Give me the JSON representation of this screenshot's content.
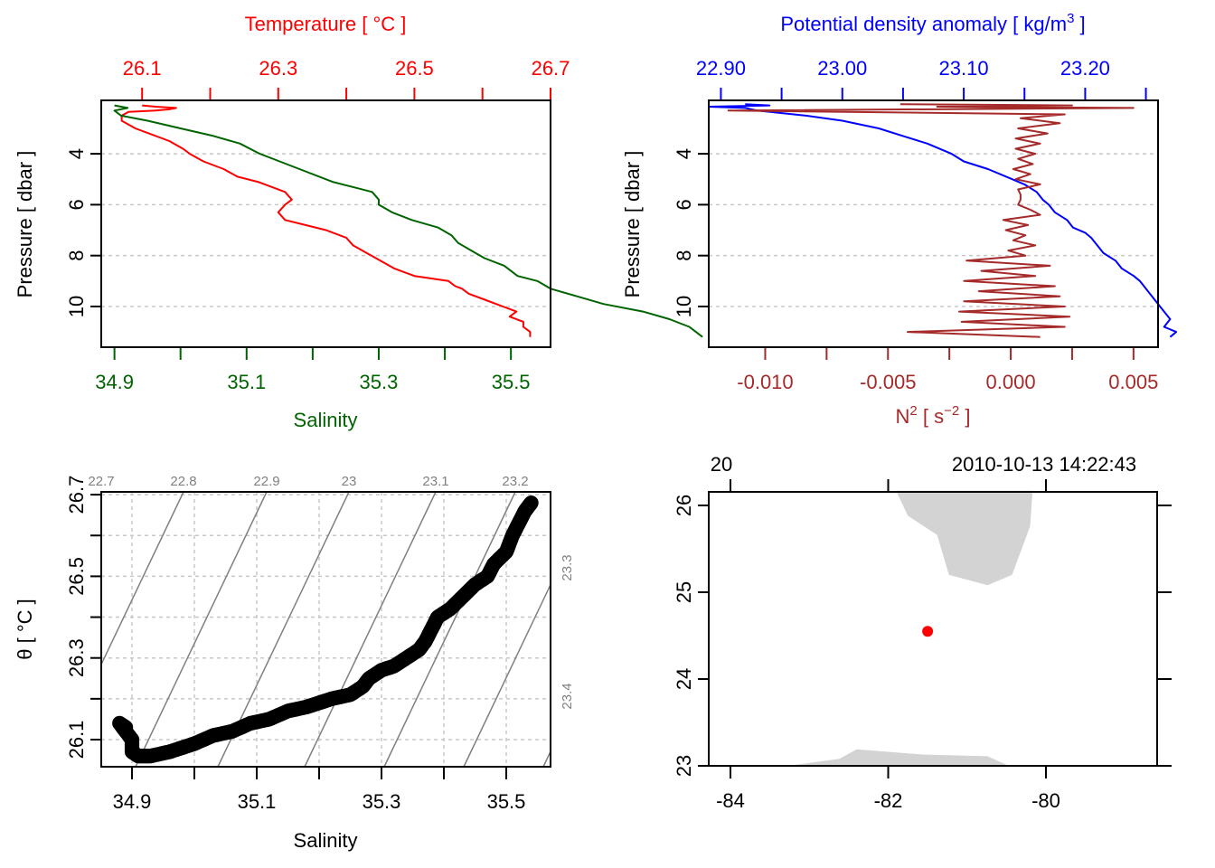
{
  "chart_data": [
    {
      "id": "profile-ts",
      "type": "line",
      "title": "",
      "top_axis": {
        "label": "Temperature [ °C ]",
        "color": "#ff0000",
        "ticks": [
          "26.1",
          "26.3",
          "26.5",
          "26.7"
        ],
        "range": [
          26.04,
          26.7
        ]
      },
      "bottom_axis": {
        "label": "Salinity",
        "color": "#006400",
        "ticks": [
          "34.9",
          "35.1",
          "35.3",
          "35.5"
        ],
        "range": [
          34.88,
          35.56
        ]
      },
      "ylabel": "Pressure [ dbar ]",
      "y_ticks": [
        "4",
        "6",
        "8",
        "10"
      ],
      "ylim": [
        11.6,
        1.9
      ],
      "grid": "horizontal dotted",
      "series": [
        {
          "name": "Temperature",
          "color": "#ff0000",
          "axis": "top",
          "pressure": [
            2.1,
            2.15,
            2.2,
            2.25,
            2.3,
            2.35,
            2.5,
            2.7,
            3.0,
            3.2,
            3.5,
            3.8,
            4.0,
            4.3,
            4.6,
            4.9,
            5.1,
            5.3,
            5.5,
            5.8,
            6.0,
            6.3,
            6.6,
            6.8,
            7.0,
            7.3,
            7.6,
            7.9,
            8.2,
            8.5,
            8.8,
            9.0,
            9.2,
            9.3,
            9.5,
            9.7,
            9.9,
            10.0,
            10.2,
            10.4,
            10.6,
            10.8,
            11.0,
            11.2
          ],
          "values": [
            26.1,
            26.12,
            26.15,
            26.14,
            26.12,
            26.08,
            26.07,
            26.07,
            26.09,
            26.11,
            26.14,
            26.16,
            26.17,
            26.19,
            26.22,
            26.24,
            26.27,
            26.29,
            26.31,
            26.32,
            26.31,
            26.3,
            26.31,
            26.34,
            26.37,
            26.4,
            26.41,
            26.43,
            26.45,
            26.47,
            26.5,
            26.55,
            26.56,
            26.57,
            26.58,
            26.6,
            26.62,
            26.63,
            26.65,
            26.64,
            26.66,
            26.66,
            26.67,
            26.67
          ]
        },
        {
          "name": "Salinity",
          "color": "#006400",
          "axis": "bottom",
          "pressure": [
            2.1,
            2.2,
            2.3,
            2.5,
            2.7,
            3.0,
            3.3,
            3.6,
            4.0,
            4.3,
            4.6,
            4.9,
            5.1,
            5.3,
            5.5,
            5.8,
            6.0,
            6.3,
            6.6,
            6.9,
            7.2,
            7.5,
            7.8,
            8.1,
            8.4,
            8.8,
            9.0,
            9.3,
            9.6,
            9.9,
            10.2,
            10.5,
            10.8,
            11.0,
            11.2
          ],
          "values": [
            34.9,
            34.92,
            34.9,
            34.91,
            34.95,
            35.0,
            35.05,
            35.09,
            35.12,
            35.15,
            35.18,
            35.21,
            35.23,
            35.26,
            35.29,
            35.3,
            35.3,
            35.32,
            35.35,
            35.39,
            35.41,
            35.42,
            35.44,
            35.46,
            35.49,
            35.51,
            35.54,
            35.56,
            35.6,
            35.64,
            35.7,
            35.74,
            35.77,
            35.78,
            35.79
          ]
        }
      ]
    },
    {
      "id": "profile-density-n2",
      "type": "line",
      "top_axis": {
        "label": "Potential density anomaly [ kg/m3 ]",
        "color": "#0000ff",
        "ticks": [
          "22.90",
          "23.00",
          "23.10",
          "23.20"
        ],
        "range": [
          22.89,
          23.26
        ]
      },
      "bottom_axis": {
        "label": "N2 [ s-2 ]",
        "color": "#a52a2a",
        "ticks": [
          "-0.010",
          "-0.005",
          "0.000",
          "0.005"
        ],
        "range": [
          -0.0123,
          0.006
        ]
      },
      "ylabel": "Pressure [ dbar ]",
      "y_ticks": [
        "4",
        "6",
        "8",
        "10"
      ],
      "ylim": [
        11.6,
        1.9
      ],
      "grid": "horizontal dotted",
      "series": [
        {
          "name": "Potential density anomaly",
          "color": "#0000ff",
          "axis": "top",
          "pressure": [
            2.05,
            2.1,
            2.15,
            2.2,
            2.3,
            2.5,
            2.7,
            3.0,
            3.3,
            3.6,
            4.0,
            4.3,
            4.6,
            4.9,
            5.2,
            5.5,
            5.8,
            6.0,
            6.3,
            6.6,
            6.9,
            7.1,
            7.3,
            7.6,
            7.9,
            8.2,
            8.5,
            8.8,
            9.0,
            9.3,
            9.6,
            9.9,
            10.2,
            10.5,
            10.8,
            11.0,
            11.2
          ],
          "values": [
            22.92,
            22.94,
            22.89,
            22.92,
            22.93,
            22.97,
            23.0,
            23.03,
            23.05,
            23.07,
            23.09,
            23.1,
            23.12,
            23.135,
            23.15,
            23.16,
            23.165,
            23.17,
            23.175,
            23.185,
            23.19,
            23.2,
            23.205,
            23.21,
            23.215,
            23.225,
            23.23,
            23.24,
            23.245,
            23.25,
            23.255,
            23.26,
            23.265,
            23.27,
            23.265,
            23.275,
            23.27
          ]
        },
        {
          "name": "N2",
          "color": "#a52a2a",
          "axis": "bottom",
          "pressure": [
            2.05,
            2.1,
            2.15,
            2.2,
            2.3,
            2.45,
            2.6,
            2.8,
            3.0,
            3.2,
            3.4,
            3.6,
            3.8,
            4.0,
            4.2,
            4.4,
            4.6,
            4.8,
            5.0,
            5.2,
            5.4,
            5.6,
            5.8,
            6.0,
            6.2,
            6.4,
            6.6,
            6.8,
            7.0,
            7.2,
            7.4,
            7.6,
            7.8,
            8.0,
            8.2,
            8.4,
            8.6,
            8.8,
            9.0,
            9.2,
            9.4,
            9.6,
            9.8,
            10.0,
            10.2,
            10.4,
            10.6,
            10.8,
            11.0,
            11.2
          ],
          "values": [
            -0.0045,
            0.0025,
            -0.003,
            0.005,
            -0.0115,
            0.0022,
            0.0004,
            0.002,
            0.0003,
            0.0015,
            0.0002,
            0.0012,
            0.0002,
            0.001,
            0.0003,
            0.0009,
            0.0001,
            0.0008,
            0.0002,
            0.0012,
            0.0003,
            0.0004,
            0.0004,
            0.0003,
            0.0008,
            0.0012,
            -0.0003,
            0.0007,
            -0.0002,
            0.0006,
            0.0001,
            0.001,
            -0.0001,
            0.0006,
            -0.0018,
            0.0016,
            -0.0012,
            0.001,
            -0.0019,
            0.0018,
            -0.0013,
            0.002,
            -0.0019,
            0.0022,
            -0.0021,
            0.0024,
            -0.002,
            0.0022,
            -0.0042,
            0.0012
          ]
        }
      ]
    },
    {
      "id": "ts-diagram",
      "type": "scatter",
      "xlabel": "Salinity",
      "ylabel": "θ [ °C ]",
      "x_ticks": [
        "34.9",
        "35.1",
        "35.3",
        "35.5"
      ],
      "y_ticks": [
        "26.1",
        "26.3",
        "26.5",
        "26.7"
      ],
      "xlim": [
        34.86,
        35.56
      ],
      "ylim": [
        26.04,
        26.7
      ],
      "grid": "dotted",
      "isopycnal_labels_top": [
        "22.7",
        "22.8",
        "22.9",
        "23",
        "23.1",
        "23.2"
      ],
      "isopycnal_labels_right": [
        "23.3",
        "23.4"
      ],
      "isopycnal_color": "#808080",
      "point_color": "#000000",
      "salinity": [
        34.89,
        34.88,
        34.89,
        34.9,
        34.9,
        34.91,
        34.93,
        34.96,
        34.98,
        35.0,
        35.03,
        35.06,
        35.09,
        35.12,
        35.15,
        35.18,
        35.2,
        35.22,
        35.25,
        35.27,
        35.28,
        35.3,
        35.32,
        35.34,
        35.36,
        35.37,
        35.38,
        35.39,
        35.41,
        35.43,
        35.45,
        35.47,
        35.48,
        35.5,
        35.51,
        35.52,
        35.53,
        35.535,
        35.54
      ],
      "theta": [
        26.13,
        26.14,
        26.12,
        26.1,
        26.07,
        26.06,
        26.06,
        26.07,
        26.08,
        26.09,
        26.11,
        26.12,
        26.14,
        26.15,
        26.17,
        26.18,
        26.19,
        26.2,
        26.21,
        26.23,
        26.25,
        26.27,
        26.28,
        26.3,
        26.32,
        26.34,
        26.37,
        26.4,
        26.42,
        26.45,
        26.48,
        26.5,
        26.53,
        26.56,
        26.6,
        26.63,
        26.66,
        26.67,
        26.68
      ]
    },
    {
      "id": "station-map",
      "type": "scatter",
      "top_labels": [
        "20",
        "2010-10-13 14:22:43"
      ],
      "x_ticks": [
        "-84",
        "-82",
        "-80"
      ],
      "y_ticks": [
        "23",
        "24",
        "25",
        "26"
      ],
      "xlim": [
        -84.12,
        -78.5
      ],
      "ylim": [
        23.0,
        26.17
      ],
      "land_color": "#d3d3d3",
      "station": {
        "lon": -81.5,
        "lat": 24.55,
        "color": "#ff0000"
      },
      "land_north": [
        [
          -81.9,
          26.17
        ],
        [
          -81.75,
          25.88
        ],
        [
          -81.38,
          25.66
        ],
        [
          -81.23,
          25.2
        ],
        [
          -80.74,
          25.08
        ],
        [
          -80.43,
          25.2
        ],
        [
          -80.2,
          25.76
        ],
        [
          -80.17,
          26.17
        ]
      ],
      "land_south": [
        [
          -83.27,
          23.0
        ],
        [
          -82.62,
          23.08
        ],
        [
          -82.4,
          23.19
        ],
        [
          -81.57,
          23.13
        ],
        [
          -80.74,
          23.11
        ],
        [
          -80.47,
          23.0
        ]
      ]
    }
  ]
}
